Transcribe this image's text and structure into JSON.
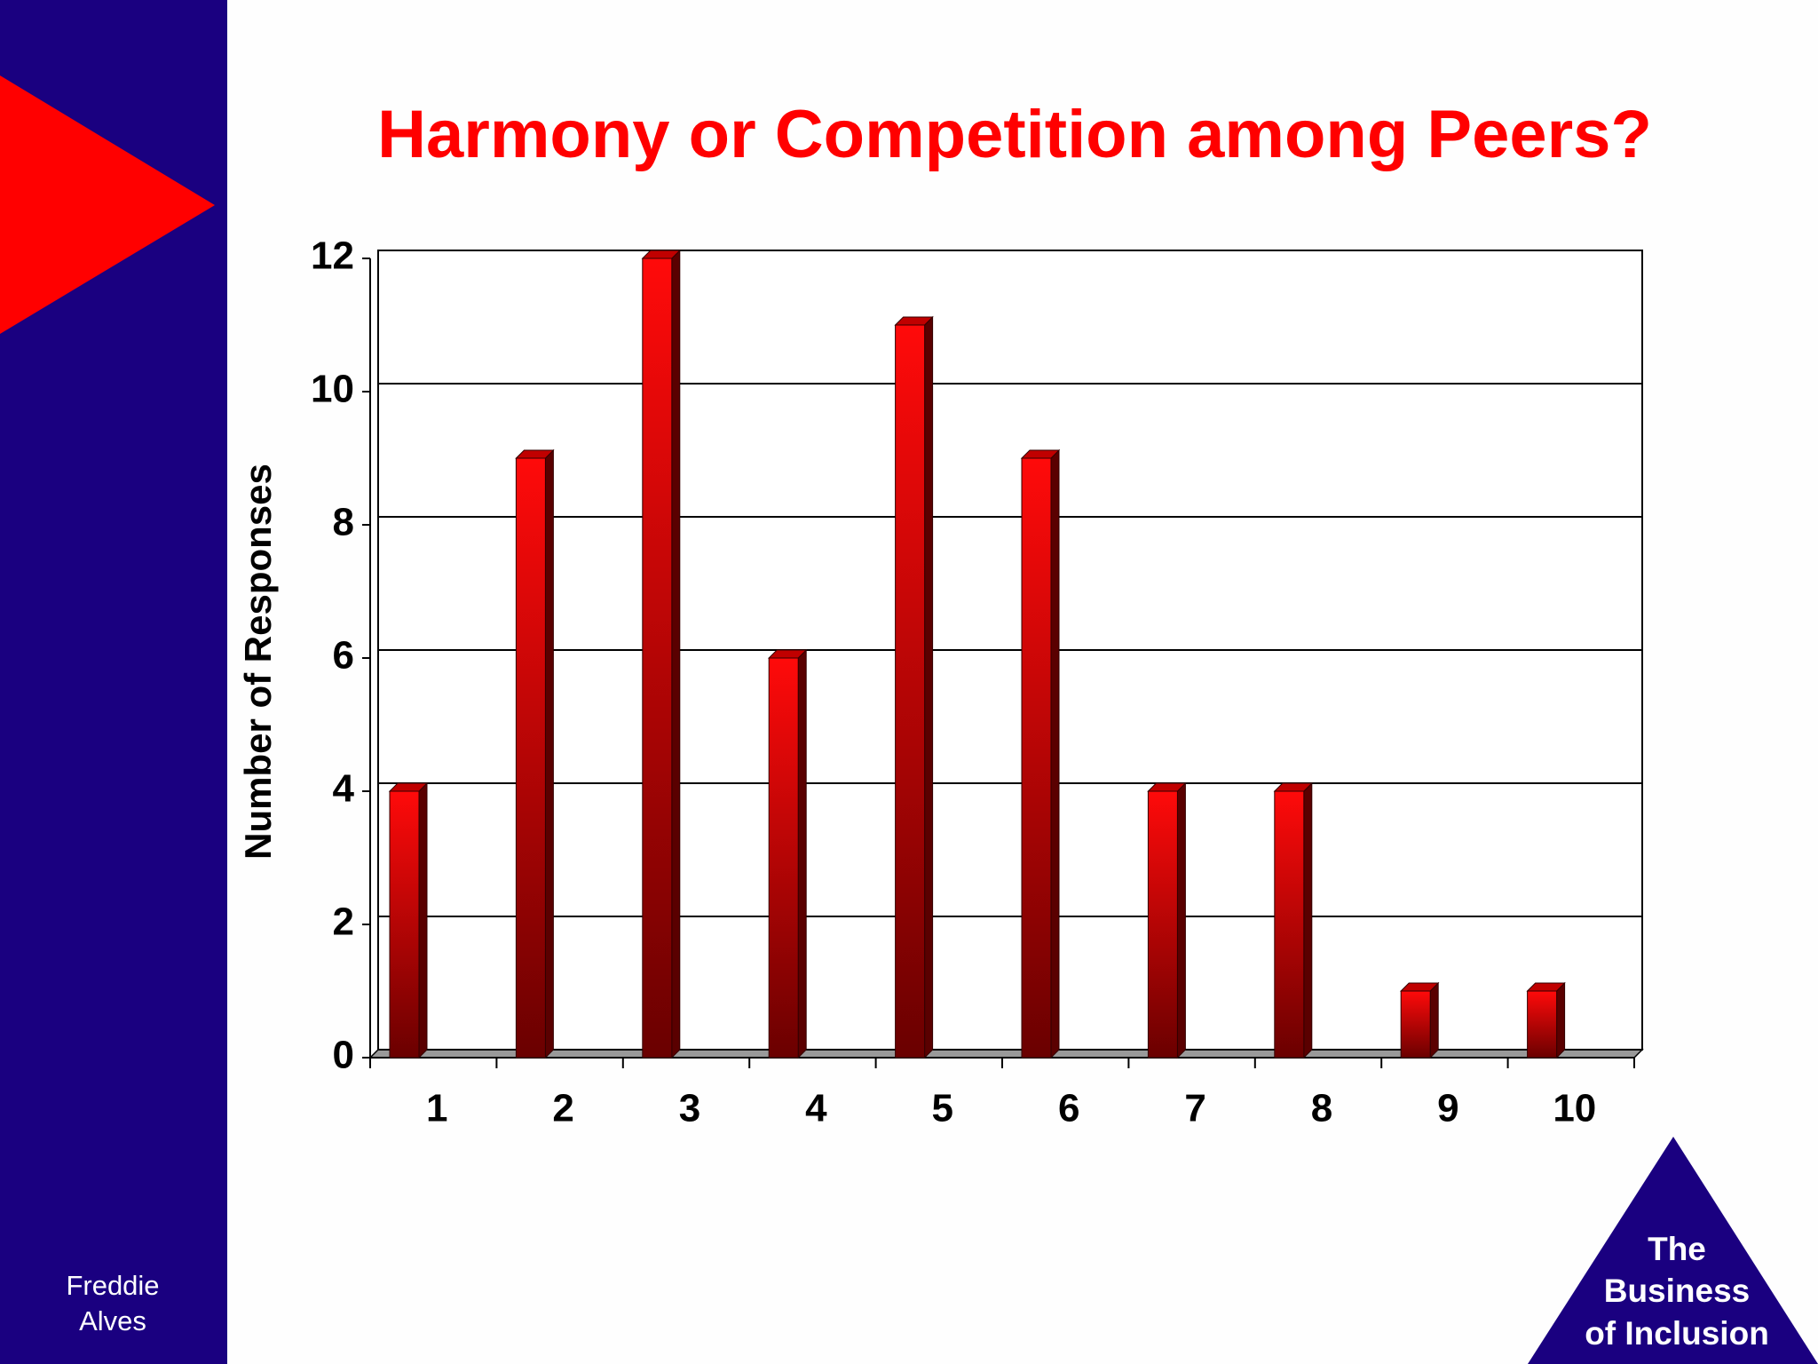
{
  "chart_data": {
    "type": "bar",
    "title": "Harmony or Competition among Peers?",
    "y_label": "Number of Responses",
    "categories": [
      "1",
      "2",
      "3",
      "4",
      "5",
      "6",
      "7",
      "8",
      "9",
      "10"
    ],
    "values": [
      4,
      9,
      12,
      6,
      11,
      9,
      4,
      4,
      1,
      1
    ],
    "color": "#ff0000",
    "ylim": [
      0,
      12
    ],
    "yticks": [
      0,
      2,
      4,
      6,
      8,
      10,
      12
    ],
    "grid": true
  },
  "author": [
    "Freddie",
    "Alves"
  ],
  "logo": [
    "The",
    "Business",
    "of Inclusion"
  ]
}
